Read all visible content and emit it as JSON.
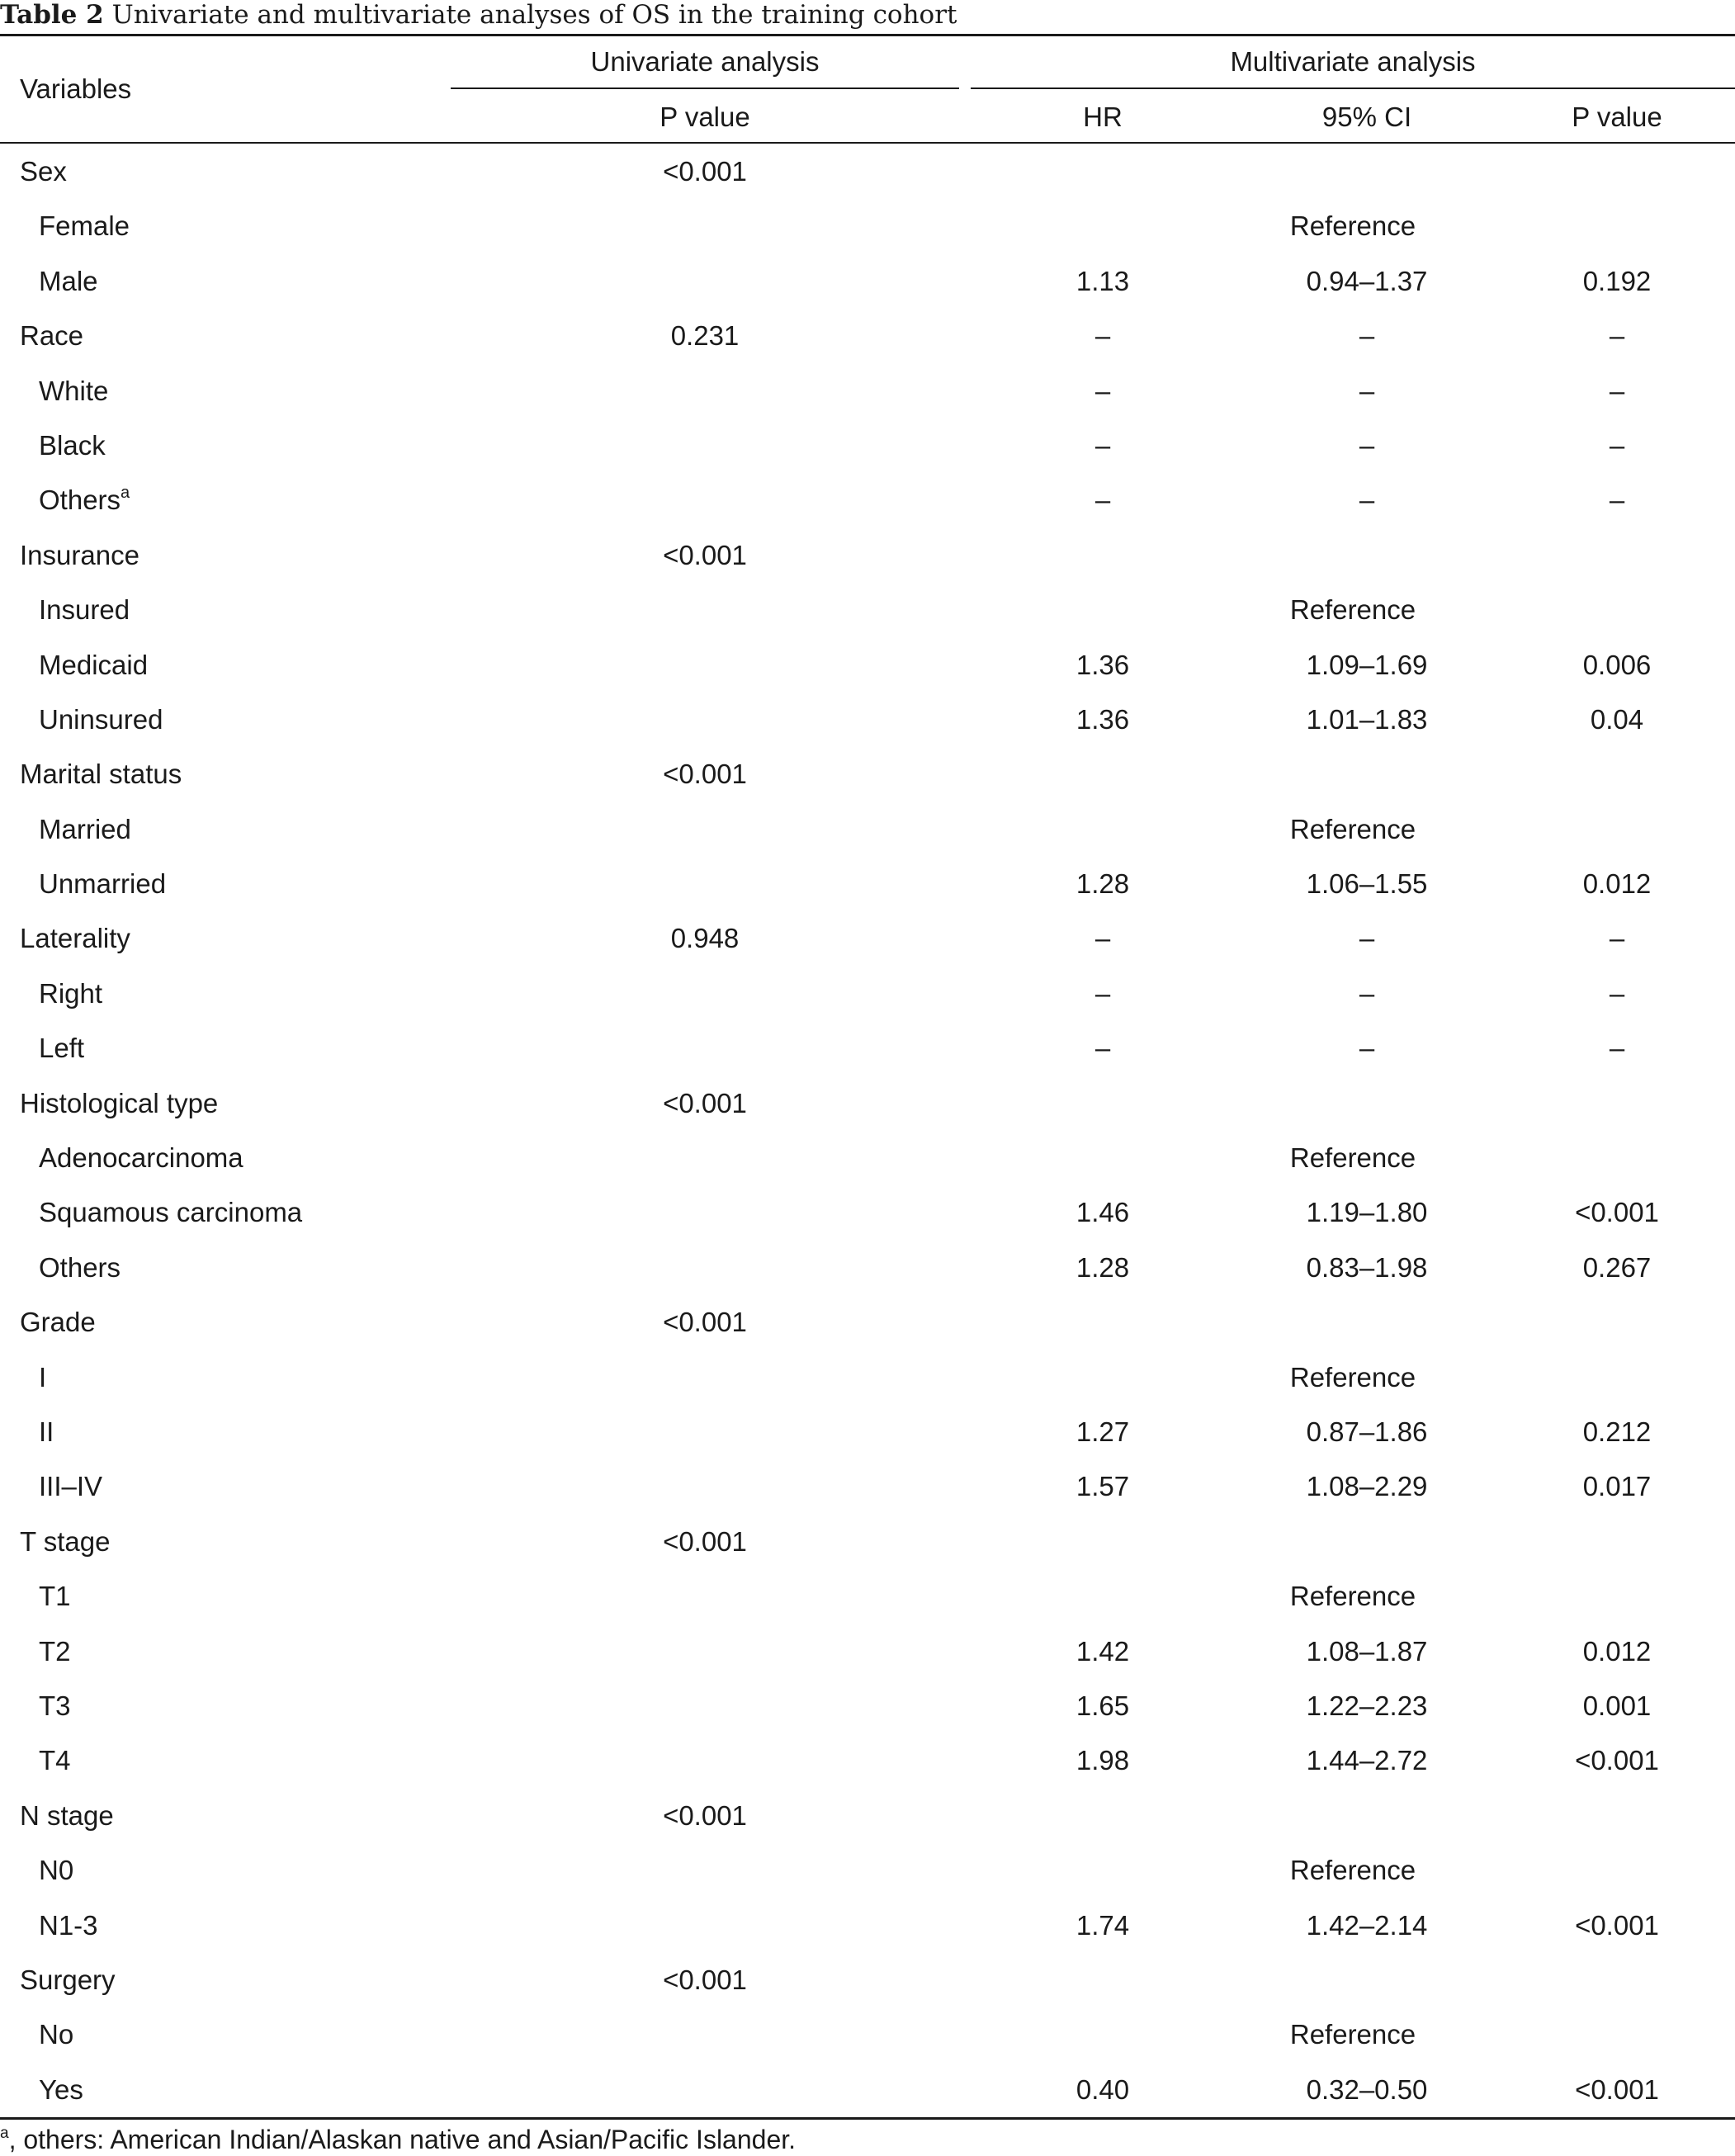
{
  "caption": {
    "label": "Table 2",
    "text": " Univariate and multivariate analyses of OS in the training cohort"
  },
  "header": {
    "variables": "Variables",
    "univariate": "Univariate analysis",
    "multivariate": "Multivariate analysis",
    "p_value": "P value",
    "hr": "HR",
    "ci": "95% CI",
    "p_value_multi": "P value"
  },
  "rows": [
    {
      "label": "Sex",
      "sub": false,
      "p_uni": "<0.001",
      "hr": "",
      "ci": "",
      "p": ""
    },
    {
      "label": "Female",
      "sub": true,
      "reference": "Reference"
    },
    {
      "label": "Male",
      "sub": true,
      "p_uni": "",
      "hr": "1.13",
      "ci": "0.94–1.37",
      "p": "0.192"
    },
    {
      "label": "Race",
      "sub": false,
      "p_uni": "0.231",
      "hr": "–",
      "ci": "–",
      "p": "–"
    },
    {
      "label": "White",
      "sub": true,
      "p_uni": "",
      "hr": "–",
      "ci": "–",
      "p": "–"
    },
    {
      "label": "Black",
      "sub": true,
      "p_uni": "",
      "hr": "–",
      "ci": "–",
      "p": "–"
    },
    {
      "label": "Others",
      "sup": "a",
      "sub": true,
      "p_uni": "",
      "hr": "–",
      "ci": "–",
      "p": "–"
    },
    {
      "label": "Insurance",
      "sub": false,
      "p_uni": "<0.001",
      "hr": "",
      "ci": "",
      "p": ""
    },
    {
      "label": "Insured",
      "sub": true,
      "reference": "Reference"
    },
    {
      "label": "Medicaid",
      "sub": true,
      "p_uni": "",
      "hr": "1.36",
      "ci": "1.09–1.69",
      "p": "0.006"
    },
    {
      "label": "Uninsured",
      "sub": true,
      "p_uni": "",
      "hr": "1.36",
      "ci": "1.01–1.83",
      "p": "0.04"
    },
    {
      "label": "Marital status",
      "sub": false,
      "p_uni": "<0.001",
      "hr": "",
      "ci": "",
      "p": ""
    },
    {
      "label": "Married",
      "sub": true,
      "reference": "Reference"
    },
    {
      "label": "Unmarried",
      "sub": true,
      "p_uni": "",
      "hr": "1.28",
      "ci": "1.06–1.55",
      "p": "0.012"
    },
    {
      "label": "Laterality",
      "sub": false,
      "p_uni": "0.948",
      "hr": "–",
      "ci": "–",
      "p": "–"
    },
    {
      "label": "Right",
      "sub": true,
      "p_uni": "",
      "hr": "–",
      "ci": "–",
      "p": "–"
    },
    {
      "label": "Left",
      "sub": true,
      "p_uni": "",
      "hr": "–",
      "ci": "–",
      "p": "–"
    },
    {
      "label": "Histological type",
      "sub": false,
      "p_uni": "<0.001",
      "hr": "",
      "ci": "",
      "p": ""
    },
    {
      "label": "Adenocarcinoma",
      "sub": true,
      "reference": "Reference"
    },
    {
      "label": "Squamous carcinoma",
      "sub": true,
      "p_uni": "",
      "hr": "1.46",
      "ci": "1.19–1.80",
      "p": "<0.001"
    },
    {
      "label": "Others",
      "sub": true,
      "p_uni": "",
      "hr": "1.28",
      "ci": "0.83–1.98",
      "p": "0.267"
    },
    {
      "label": "Grade",
      "sub": false,
      "p_uni": "<0.001",
      "hr": "",
      "ci": "",
      "p": ""
    },
    {
      "label": "I",
      "sub": true,
      "reference": "Reference"
    },
    {
      "label": "II",
      "sub": true,
      "p_uni": "",
      "hr": "1.27",
      "ci": "0.87–1.86",
      "p": "0.212"
    },
    {
      "label": "III–IV",
      "sub": true,
      "p_uni": "",
      "hr": "1.57",
      "ci": "1.08–2.29",
      "p": "0.017"
    },
    {
      "label": "T stage",
      "sub": false,
      "p_uni": "<0.001",
      "hr": "",
      "ci": "",
      "p": ""
    },
    {
      "label": "T1",
      "sub": true,
      "reference": "Reference"
    },
    {
      "label": "T2",
      "sub": true,
      "p_uni": "",
      "hr": "1.42",
      "ci": "1.08–1.87",
      "p": "0.012"
    },
    {
      "label": "T3",
      "sub": true,
      "p_uni": "",
      "hr": "1.65",
      "ci": "1.22–2.23",
      "p": "0.001"
    },
    {
      "label": "T4",
      "sub": true,
      "p_uni": "",
      "hr": "1.98",
      "ci": "1.44–2.72",
      "p": "<0.001"
    },
    {
      "label": "N stage",
      "sub": false,
      "p_uni": "<0.001",
      "hr": "",
      "ci": "",
      "p": ""
    },
    {
      "label": "N0",
      "sub": true,
      "reference": "Reference"
    },
    {
      "label": "N1-3",
      "sub": true,
      "p_uni": "",
      "hr": "1.74",
      "ci": "1.42–2.14",
      "p": "<0.001"
    },
    {
      "label": "Surgery",
      "sub": false,
      "p_uni": "<0.001",
      "hr": "",
      "ci": "",
      "p": ""
    },
    {
      "label": "No",
      "sub": true,
      "reference": "Reference"
    },
    {
      "label": "Yes",
      "sub": true,
      "p_uni": "",
      "hr": "0.40",
      "ci": "0.32–0.50",
      "p": "<0.001"
    }
  ],
  "footnote": {
    "sup": "a",
    "text": ", others: American Indian/Alaskan native and Asian/Pacific Islander."
  }
}
